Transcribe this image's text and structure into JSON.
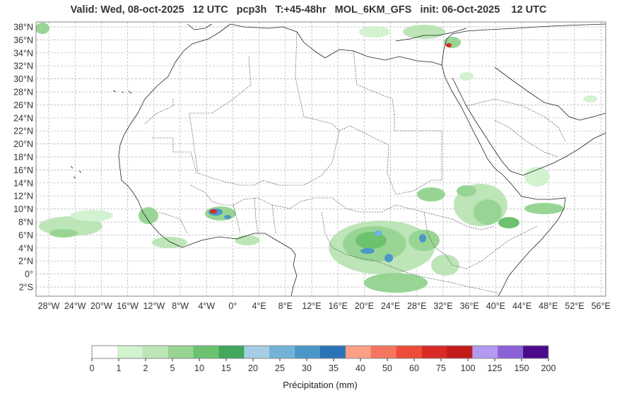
{
  "title": "Valid: Wed, 08-oct-2025   12 UTC   pcp3h   T:+45-48hr   MOL_6KM_GFS   init: 06-Oct-2025    12 UTC",
  "map": {
    "lat_labels": [
      "38°N",
      "36°N",
      "34°N",
      "32°N",
      "30°N",
      "28°N",
      "26°N",
      "24°N",
      "22°N",
      "20°N",
      "18°N",
      "16°N",
      "14°N",
      "12°N",
      "10°N",
      "8°N",
      "6°N",
      "4°N",
      "2°N",
      "0°",
      "2°S"
    ],
    "lon_labels": [
      "28°W",
      "24°W",
      "20°W",
      "16°W",
      "12°W",
      "8°W",
      "4°W",
      "0°",
      "4°E",
      "8°E",
      "12°E",
      "16°E",
      "20°E",
      "24°E",
      "28°E",
      "32°E",
      "36°E",
      "40°E",
      "44°E",
      "48°E",
      "52°E",
      "56°E"
    ],
    "grid": true
  },
  "colorbar": {
    "label": "Précipitation (mm)",
    "ticks": [
      "0",
      "1",
      "2",
      "5",
      "10",
      "15",
      "20",
      "25",
      "30",
      "35",
      "40",
      "50",
      "60",
      "75",
      "100",
      "125",
      "150",
      "200"
    ],
    "colors": [
      "#ffffff",
      "#d2f2d0",
      "#bde5b8",
      "#98d594",
      "#6cc26f",
      "#3fa85b",
      "#a5cde3",
      "#74b3d8",
      "#4b96c9",
      "#2b73b6",
      "#fb9f86",
      "#f6755e",
      "#ed4c3b",
      "#d92a26",
      "#c31a1a",
      "#b19af0",
      "#8b62d8",
      "#4a0a8a"
    ]
  }
}
